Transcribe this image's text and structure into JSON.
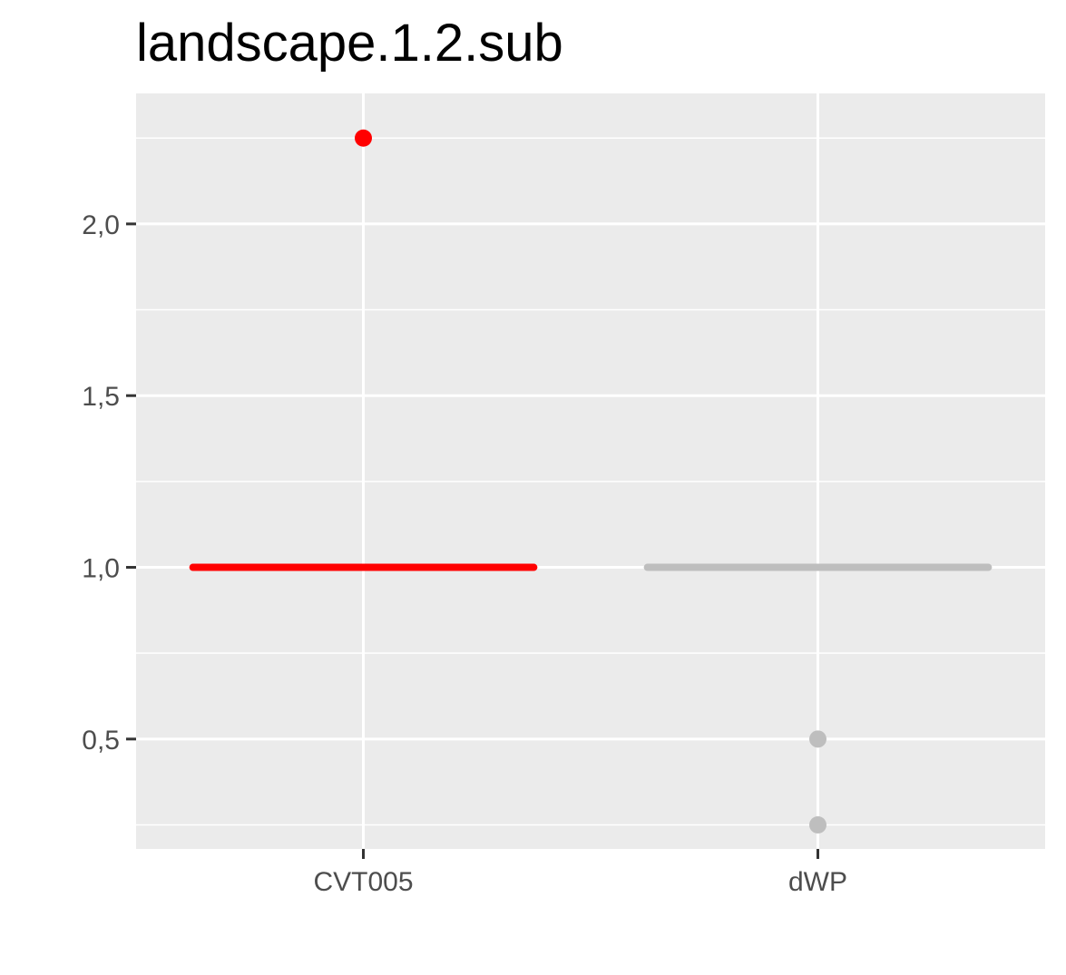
{
  "chart_data": {
    "type": "scatter",
    "title": "landscape.1.2.sub",
    "xlabel": "",
    "ylabel": "",
    "categories": [
      "CVT005",
      "dWP"
    ],
    "ylim": [
      0.18,
      2.38
    ],
    "y_ticks": [
      0.5,
      1.0,
      1.5,
      2.0
    ],
    "y_tick_labels": [
      "0,5",
      "1,0",
      "1,5",
      "2,0"
    ],
    "y_minor_ticks": [
      0.25,
      0.75,
      1.25,
      1.75,
      2.25
    ],
    "grid": true,
    "legend": "none",
    "median_lines": [
      {
        "category": "CVT005",
        "value": 1.0,
        "color": "#ff0000"
      },
      {
        "category": "dWP",
        "value": 1.0,
        "color": "#bebebe"
      }
    ],
    "points": [
      {
        "category": "CVT005",
        "value": 2.25,
        "color": "#ff0000"
      },
      {
        "category": "dWP",
        "value": 0.5,
        "color": "#bebebe"
      },
      {
        "category": "dWP",
        "value": 0.25,
        "color": "#bebebe"
      }
    ],
    "panel_background": "#ebebeb",
    "grid_color": "#ffffff"
  }
}
